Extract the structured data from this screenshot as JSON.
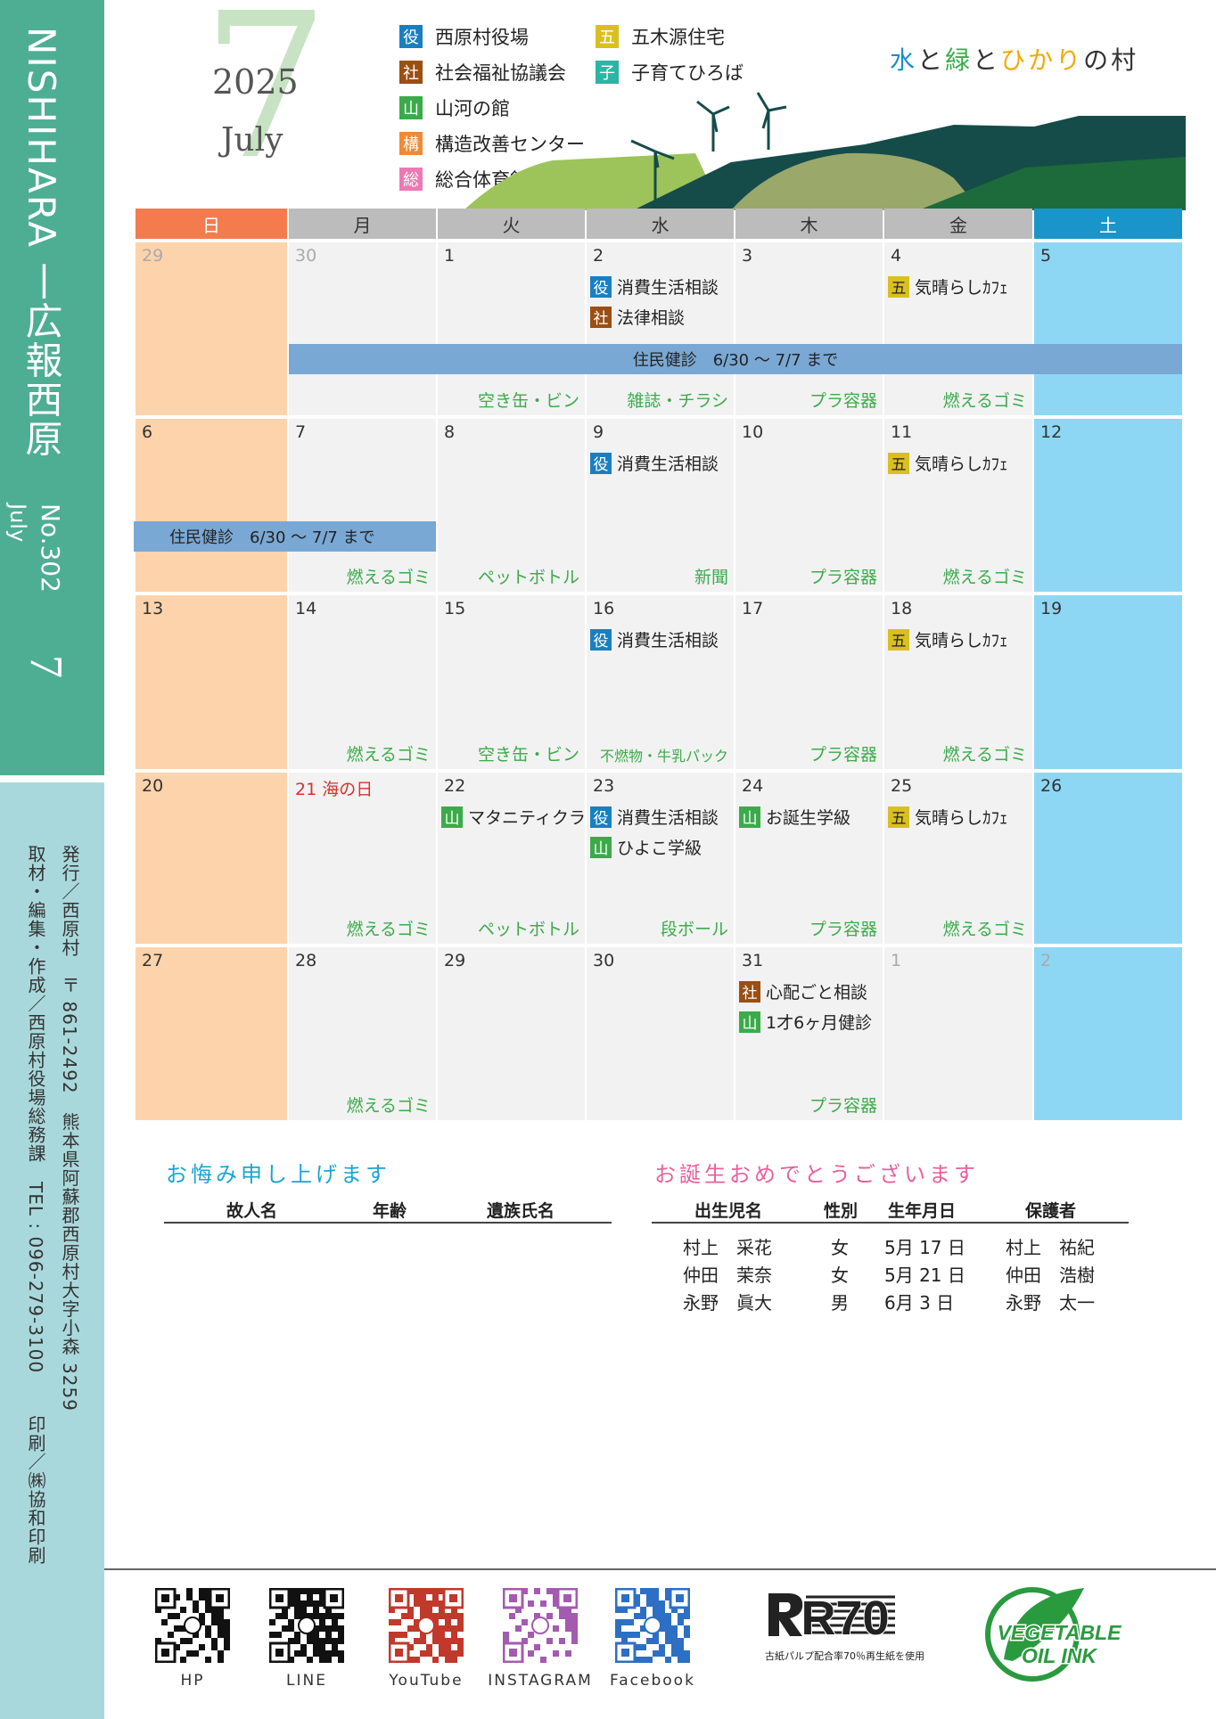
{
  "sidebar": {
    "title": "NISHIHARA 丨広報西原",
    "month_en": "July",
    "issue_no": "No.302",
    "month_num": "7",
    "info1": "発行／西原村　〒 861-2492　熊本県阿蘇郡西原村大字小森 3259",
    "info2": "取材・編集・作成／西原村役場総務課　TEL : 096-279-3100",
    "printer": "印刷／㈱協和印刷"
  },
  "header": {
    "big_month": "7",
    "year": "2025",
    "month_en": "July",
    "slogan_parts": [
      {
        "text": "水",
        "color": "#1a8fc6"
      },
      {
        "text": "と",
        "color": "#333333"
      },
      {
        "text": "緑",
        "color": "#3bab4a"
      },
      {
        "text": "と",
        "color": "#333333"
      },
      {
        "text": "ひかり",
        "color": "#f2a900"
      },
      {
        "text": "の村",
        "color": "#333333"
      }
    ]
  },
  "legend": [
    {
      "badge": "役",
      "label": "西原村役場",
      "color": "#1a7fc1"
    },
    {
      "badge": "社",
      "label": "社会福祉協議会",
      "color": "#9a4f13"
    },
    {
      "badge": "山",
      "label": "山河の館",
      "color": "#3bab4a"
    },
    {
      "badge": "構",
      "label": "構造改善センター",
      "color": "#f08a35"
    },
    {
      "badge": "総",
      "label": "総合体育館",
      "color": "#ec79b3"
    },
    {
      "badge": "五",
      "label": "五木源住宅",
      "color": "#d9c020"
    },
    {
      "badge": "子",
      "label": "子育てひろば",
      "color": "#2bb5a4"
    }
  ],
  "calendar": {
    "weekdays": [
      "日",
      "月",
      "火",
      "水",
      "木",
      "金",
      "土"
    ],
    "weekday_colors": [
      "#f47b4e",
      "#bcbcbc",
      "#bcbcbc",
      "#bcbcbc",
      "#bcbcbc",
      "#bcbcbc",
      "#1a95c9"
    ],
    "weeks": [
      [
        {
          "num": "29",
          "style": "grey"
        },
        {
          "num": "30",
          "style": "grey"
        },
        {
          "num": "1",
          "garbage": "空き缶・ビン"
        },
        {
          "num": "2",
          "events": [
            {
              "b": "役",
              "t": "消費生活相談"
            },
            {
              "b": "社",
              "t": "法律相談"
            }
          ],
          "garbage": "雑誌・チラシ"
        },
        {
          "num": "3",
          "garbage": "プラ容器"
        },
        {
          "num": "4",
          "events": [
            {
              "b": "五",
              "t": "気晴らしｶﾌｪ"
            }
          ],
          "garbage": "燃えるゴミ"
        },
        {
          "num": "5"
        }
      ],
      [
        {
          "num": "6"
        },
        {
          "num": "7",
          "garbage": "燃えるゴミ"
        },
        {
          "num": "8",
          "garbage": "ペットボトル"
        },
        {
          "num": "9",
          "events": [
            {
              "b": "役",
              "t": "消費生活相談"
            }
          ],
          "garbage": "新聞"
        },
        {
          "num": "10",
          "garbage": "プラ容器"
        },
        {
          "num": "11",
          "events": [
            {
              "b": "五",
              "t": "気晴らしｶﾌｪ"
            }
          ],
          "garbage": "燃えるゴミ"
        },
        {
          "num": "12"
        }
      ],
      [
        {
          "num": "13"
        },
        {
          "num": "14",
          "garbage": "燃えるゴミ"
        },
        {
          "num": "15",
          "garbage": "空き缶・ビン"
        },
        {
          "num": "16",
          "events": [
            {
              "b": "役",
              "t": "消費生活相談"
            }
          ],
          "garbage": "不燃物・牛乳パック"
        },
        {
          "num": "17",
          "garbage": "プラ容器"
        },
        {
          "num": "18",
          "events": [
            {
              "b": "五",
              "t": "気晴らしｶﾌｪ"
            }
          ],
          "garbage": "燃えるゴミ"
        },
        {
          "num": "19"
        }
      ],
      [
        {
          "num": "20"
        },
        {
          "num": "21 海の日",
          "style": "red",
          "garbage": "燃えるゴミ"
        },
        {
          "num": "22",
          "events": [
            {
              "b": "山",
              "t": "マタニティクラス"
            }
          ],
          "garbage": "ペットボトル"
        },
        {
          "num": "23",
          "events": [
            {
              "b": "役",
              "t": "消費生活相談"
            },
            {
              "b": "山",
              "t": "ひよこ学級"
            }
          ],
          "garbage": "段ボール"
        },
        {
          "num": "24",
          "events": [
            {
              "b": "山",
              "t": "お誕生学級"
            }
          ],
          "garbage": "プラ容器"
        },
        {
          "num": "25",
          "events": [
            {
              "b": "五",
              "t": "気晴らしｶﾌｪ"
            }
          ],
          "garbage": "燃えるゴミ"
        },
        {
          "num": "26"
        }
      ],
      [
        {
          "num": "27"
        },
        {
          "num": "28",
          "garbage": "燃えるゴミ"
        },
        {
          "num": "29"
        },
        {
          "num": "30"
        },
        {
          "num": "31",
          "events": [
            {
              "b": "社",
              "t": "心配ごと相談"
            },
            {
              "b": "山",
              "t": "1才6ヶ月健診"
            }
          ],
          "garbage": "プラ容器"
        },
        {
          "num": "1",
          "style": "grey"
        },
        {
          "num": "2",
          "style": "grey"
        }
      ]
    ],
    "bar_label_1": "住民健診　6/30 ～ 7/7 まで",
    "bar_label_2": "住民健診　6/30 ～ 7/7 まで"
  },
  "condolence": {
    "title": "お悔み申し上げます",
    "headers": [
      "故人名",
      "年齢",
      "遺族氏名"
    ]
  },
  "birth": {
    "title": "お誕生おめでとうございます",
    "headers": [
      "出生児名",
      "性別",
      "生年月日",
      "保護者"
    ],
    "rows": [
      [
        "村上　采花",
        "女",
        "5月 17 日",
        "村上　祐紀"
      ],
      [
        "仲田　茉奈",
        "女",
        "5月 21 日",
        "仲田　浩樹"
      ],
      [
        "永野　眞大",
        "男",
        "6月 3 日",
        "永野　太一"
      ]
    ]
  },
  "footer": {
    "links": [
      "HP",
      "LINE",
      "YouTube",
      "INSTAGRAM",
      "Facebook"
    ],
    "r70_mark": "R70",
    "r70_caption": "古紙パルプ配合率70％再生紙を使用",
    "veg_line1": "VEGETABLE",
    "veg_line2": "OIL INK"
  }
}
